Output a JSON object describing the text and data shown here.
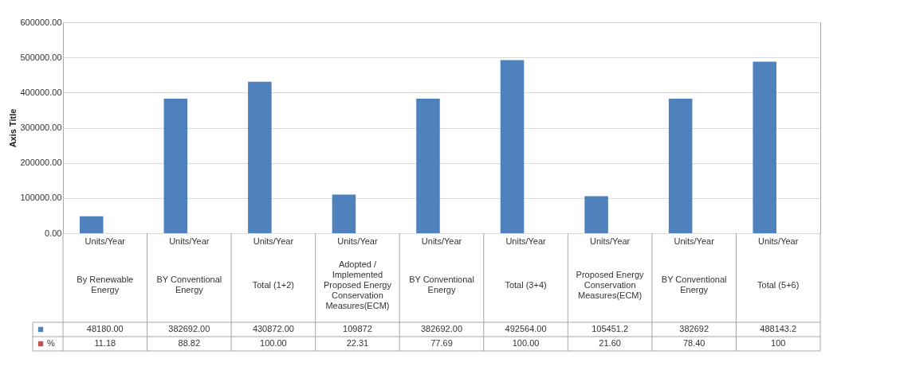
{
  "chart_data": {
    "type": "bar",
    "ylabel": "Axis Title",
    "categories": [
      "Units/Year\nBy Renewable Energy",
      "Units/Year\nBY Conventional Energy",
      "Units/Year\nTotal (1+2)",
      "Units/Year\nAdopted / Implemented Proposed Energy Conservation Measures(ECM)",
      "Units/Year\nBY Conventional Energy",
      "Units/Year\nTotal (3+4)",
      "Units/Year\nProposed Energy Conservation Measures(ECM)",
      "Units/Year\nBY Conventional Energy",
      "Units/Year\nTotal (5+6)"
    ],
    "series": [
      {
        "color": "#4f81bd",
        "values": [
          48180.0,
          382692.0,
          430872.0,
          109872,
          382692.0,
          492564.0,
          105451.2,
          382692,
          488143.2
        ],
        "value_labels": [
          "48180.00",
          "382692.00",
          "430872.00",
          "109872",
          "382692.00",
          "492564.00",
          "105451.2",
          "382692",
          "488143.2"
        ]
      },
      {
        "name": "%",
        "color": "#c0504d",
        "values": [
          11.18,
          88.82,
          100.0,
          22.31,
          77.69,
          100.0,
          21.6,
          78.4,
          100
        ],
        "value_labels": [
          "11.18",
          "88.82",
          "100.00",
          "22.31",
          "77.69",
          "100.00",
          "21.60",
          "78.40",
          "100"
        ]
      }
    ],
    "ylim": [
      0,
      600000
    ],
    "yticks": [
      {
        "value": 0,
        "label": "0.00"
      },
      {
        "value": 100000,
        "label": "100000.00"
      },
      {
        "value": 200000,
        "label": "200000.00"
      },
      {
        "value": 300000,
        "label": "300000.00"
      },
      {
        "value": 400000,
        "label": "400000.00"
      },
      {
        "value": 500000,
        "label": "500000.00"
      },
      {
        "value": 600000,
        "label": "600000.00"
      }
    ],
    "grid": "y",
    "legend": "bottom left"
  }
}
